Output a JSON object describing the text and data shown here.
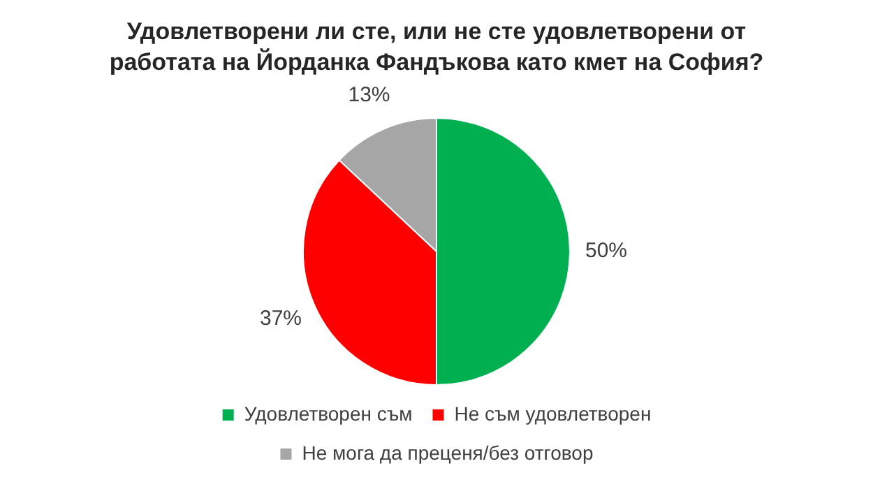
{
  "chart_data": {
    "type": "pie",
    "title": "Удовлетворени ли сте, или не сте удовлетворени от работата на Йорданка Фандъкова като кмет на София?",
    "categories": [
      "Удовлетворен съм",
      "Не съм удовлетворен",
      "Не мога да преценя/без отговор"
    ],
    "values": [
      50,
      37,
      13
    ],
    "colors": [
      "#00b050",
      "#ff0000",
      "#a6a6a6"
    ],
    "value_labels": [
      "50%",
      "37%",
      "13%"
    ],
    "legend": "bottom"
  }
}
